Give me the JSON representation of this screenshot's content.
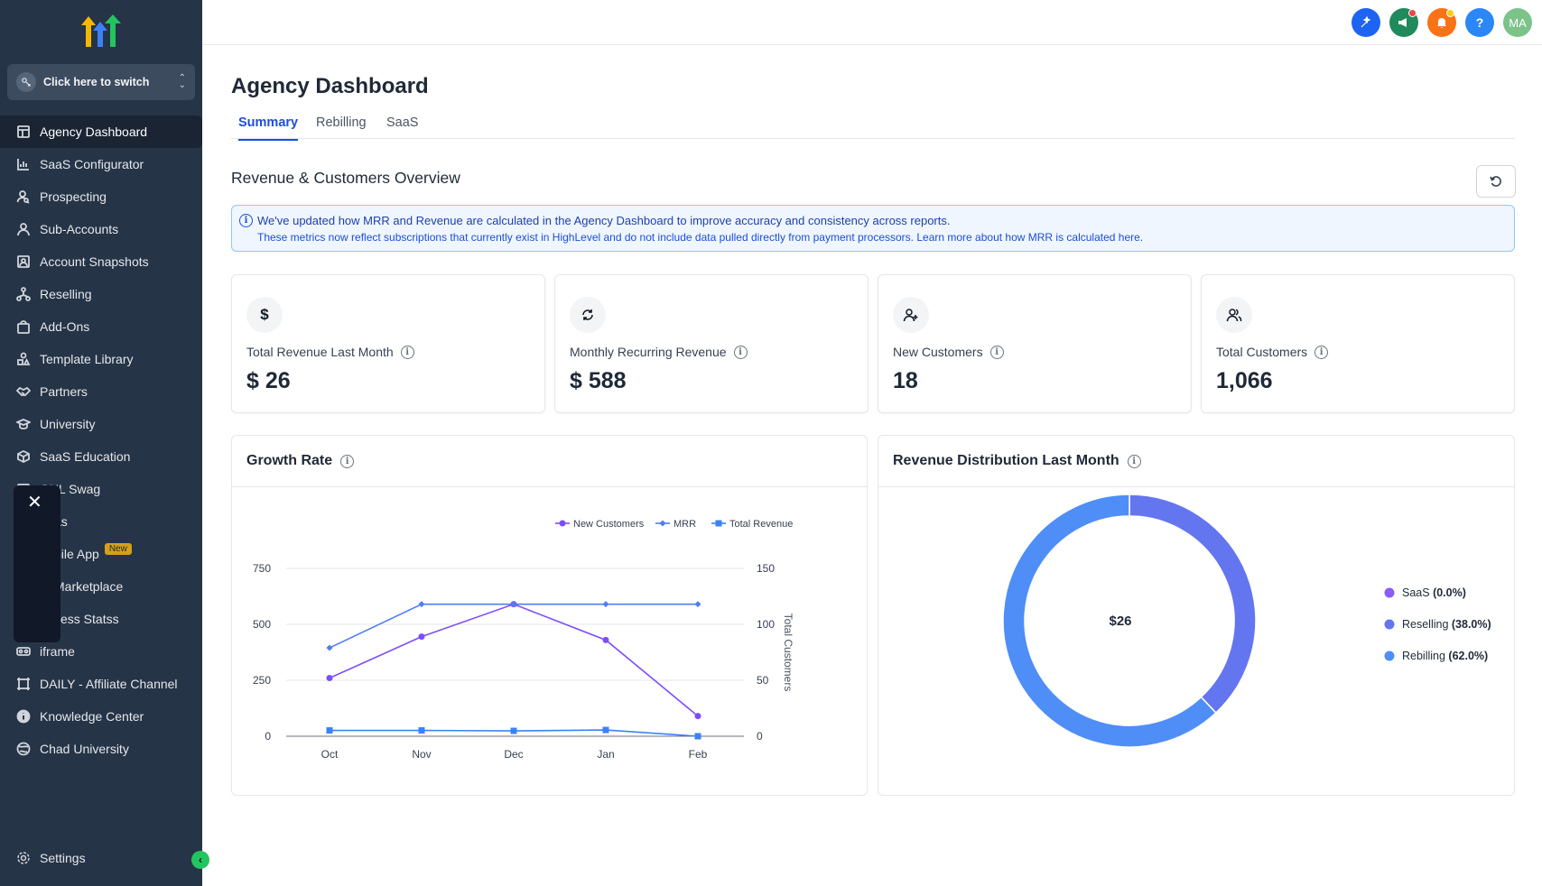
{
  "sidebar": {
    "switcher_label": "Click here to switch",
    "items": [
      {
        "label": "Agency Dashboard",
        "icon": "dashboard-icon"
      },
      {
        "label": "SaaS Configurator",
        "icon": "chart-icon"
      },
      {
        "label": "Prospecting",
        "icon": "user-search-icon"
      },
      {
        "label": "Sub-Accounts",
        "icon": "user-icon"
      },
      {
        "label": "Account Snapshots",
        "icon": "snapshot-icon"
      },
      {
        "label": "Reselling",
        "icon": "network-icon"
      },
      {
        "label": "Add-Ons",
        "icon": "bag-icon"
      },
      {
        "label": "Template Library",
        "icon": "shapes-icon"
      },
      {
        "label": "Partners",
        "icon": "handshake-icon"
      },
      {
        "label": "University",
        "icon": "graduation-icon"
      },
      {
        "label": "SaaS Education",
        "icon": "box-icon"
      },
      {
        "label": "GHL Swag",
        "visible_text": "GHL Swag",
        "icon": "shirt-icon"
      },
      {
        "label": "Ideas",
        "visible_text": "as",
        "icon": "bulb-icon"
      },
      {
        "label": "Mobile App",
        "visible_text": "bile App",
        "icon": "phone-icon",
        "badge": "New"
      },
      {
        "label": "App Marketplace",
        "visible_text": "Marketplace",
        "icon": "store-icon"
      },
      {
        "label": "Success Statss",
        "visible_text": "cess Statss",
        "icon": "stats-icon"
      },
      {
        "label": "iframe",
        "icon": "vr-icon"
      },
      {
        "label": "DAILY - Affiliate Channel",
        "icon": "frame-icon"
      },
      {
        "label": "Knowledge Center",
        "icon": "info-icon"
      },
      {
        "label": "Chad University",
        "icon": "globe-icon"
      }
    ],
    "settings_label": "Settings"
  },
  "topbar": {
    "avatar_initials": "MA",
    "help_glyph": "?"
  },
  "page": {
    "title": "Agency Dashboard",
    "tabs": [
      "Summary",
      "Rebilling",
      "SaaS"
    ],
    "active_tab": "Summary",
    "section_title": "Revenue & Customers Overview"
  },
  "banner": {
    "line1": "We've updated how MRR and Revenue are calculated in the Agency Dashboard to improve accuracy and consistency across reports.",
    "line2": "These metrics now reflect subscriptions that currently exist in HighLevel and do not include data pulled directly from payment processors. Learn more about how MRR is calculated here."
  },
  "stats": [
    {
      "label": "Total Revenue Last Month",
      "value": "$ 26",
      "icon": "dollar-icon"
    },
    {
      "label": "Monthly Recurring Revenue",
      "value": "$ 588",
      "icon": "refresh-icon"
    },
    {
      "label": "New Customers",
      "value": "18",
      "icon": "user-plus-icon"
    },
    {
      "label": "Total Customers",
      "value": "1,066",
      "icon": "users-icon"
    }
  ],
  "growth_panel": {
    "title": "Growth Rate"
  },
  "distribution_panel": {
    "title": "Revenue Distribution Last Month"
  },
  "colors": {
    "sidebar_bg": "#263447",
    "primary": "#1d4ed8",
    "new_customers": "#7c4dff",
    "mrr": "#4f7df5",
    "total_revenue": "#3b82f6",
    "saas": "#8b5cf6",
    "reselling": "#6475f0",
    "rebilling": "#4f8ef7"
  },
  "chart_data": [
    {
      "type": "line",
      "title": "Growth Rate",
      "categories": [
        "Oct",
        "Nov",
        "Dec",
        "Jan",
        "Feb"
      ],
      "series": [
        {
          "name": "New Customers",
          "axis": "right",
          "values": [
            52,
            89,
            118,
            86,
            18
          ]
        },
        {
          "name": "MRR",
          "axis": "left",
          "values": [
            395,
            590,
            590,
            590,
            590
          ]
        },
        {
          "name": "Total Revenue",
          "axis": "left",
          "values": [
            26,
            26,
            24,
            28,
            0
          ]
        }
      ],
      "y_left": {
        "min": 0,
        "max": 750,
        "ticks": [
          0,
          250,
          500,
          750
        ]
      },
      "y_right": {
        "min": 0,
        "max": 150,
        "ticks": [
          0,
          50,
          100,
          150
        ],
        "label": "Total Customers"
      },
      "legend": [
        "New Customers",
        "MRR",
        "Total Revenue"
      ]
    },
    {
      "type": "pie",
      "title": "Revenue Distribution Last Month",
      "center_label": "$26",
      "slices": [
        {
          "name": "SaaS",
          "percent": 0.0,
          "label": "(0.0%)"
        },
        {
          "name": "Reselling",
          "percent": 38.0,
          "label": "(38.0%)"
        },
        {
          "name": "Rebilling",
          "percent": 62.0,
          "label": "(62.0%)"
        }
      ]
    }
  ]
}
